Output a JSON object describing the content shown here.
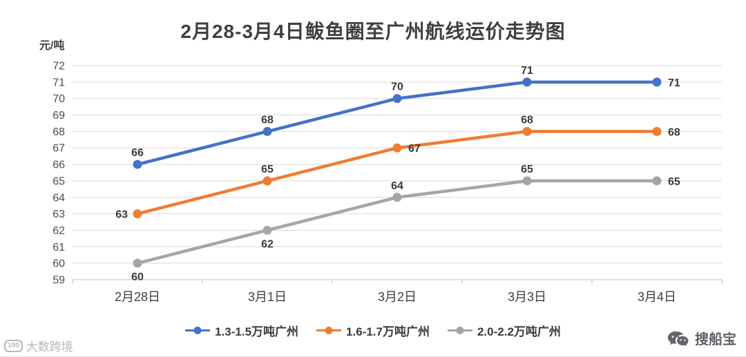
{
  "chart_data": {
    "type": "line",
    "title": "2月28-3月4日鲅鱼圈至广州航线运价走势图",
    "ylabel": "元/吨",
    "categories": [
      "2月28日",
      "3月1日",
      "3月2日",
      "3月3日",
      "3月4日"
    ],
    "series": [
      {
        "name": "1.3-1.5万吨广州",
        "color": "#4472c4",
        "values": [
          66,
          68,
          70,
          71,
          71
        ],
        "label_placement": [
          "above",
          "above",
          "above",
          "above",
          "right"
        ]
      },
      {
        "name": "1.6-1.7万吨广州",
        "color": "#ed7d31",
        "values": [
          63,
          65,
          67,
          68,
          68
        ],
        "label_placement": [
          "left",
          "above",
          "right",
          "above",
          "right"
        ]
      },
      {
        "name": "2.0-2.2万吨广州",
        "color": "#a5a5a5",
        "values": [
          60,
          62,
          64,
          65,
          65
        ],
        "label_placement": [
          "below",
          "below",
          "above",
          "above",
          "right"
        ]
      }
    ],
    "ylim": [
      59,
      72
    ],
    "ytick_step": 1,
    "grid": true,
    "legend_position": "bottom"
  },
  "watermarks": {
    "left": {
      "logo_text": "100",
      "label": "大数跨境"
    },
    "right": {
      "label": "搜船宝"
    }
  }
}
